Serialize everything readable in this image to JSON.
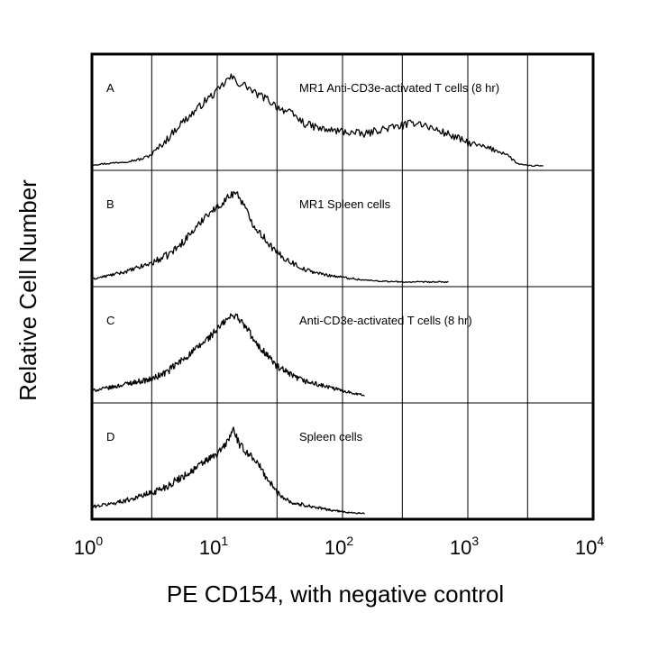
{
  "chart_data": {
    "type": "line",
    "subtype": "stacked-histogram",
    "xscale": "log",
    "xlim": [
      1,
      10000
    ],
    "xlabel": "PE CD154, with negative control",
    "ylabel": "Relative Cell Number",
    "grid": true,
    "x_ticks": [
      {
        "base": "10",
        "exp": "0"
      },
      {
        "base": "10",
        "exp": "1"
      },
      {
        "base": "10",
        "exp": "2"
      },
      {
        "base": "10",
        "exp": "3"
      },
      {
        "base": "10",
        "exp": "4"
      }
    ],
    "x_gridlines": [
      3,
      10,
      30,
      100,
      300,
      1000,
      3000
    ],
    "panels": [
      {
        "letter": "A",
        "title": "MR1 Anti-CD3e-activated T cells (8 hr)",
        "series": [
          [
            1.0,
            0.03
          ],
          [
            1.5,
            0.05
          ],
          [
            2.0,
            0.07
          ],
          [
            2.5,
            0.09
          ],
          [
            3.0,
            0.14
          ],
          [
            4.0,
            0.3
          ],
          [
            5.0,
            0.45
          ],
          [
            6.0,
            0.54
          ],
          [
            7.0,
            0.62
          ],
          [
            8.0,
            0.7
          ],
          [
            10.0,
            0.8
          ],
          [
            12.0,
            0.92
          ],
          [
            13.0,
            0.95
          ],
          [
            15.0,
            0.88
          ],
          [
            17.0,
            0.86
          ],
          [
            20.0,
            0.78
          ],
          [
            25.0,
            0.72
          ],
          [
            30.0,
            0.64
          ],
          [
            40.0,
            0.56
          ],
          [
            50.0,
            0.46
          ],
          [
            70.0,
            0.4
          ],
          [
            100.0,
            0.38
          ],
          [
            150.0,
            0.35
          ],
          [
            200.0,
            0.4
          ],
          [
            300.0,
            0.44
          ],
          [
            400.0,
            0.48
          ],
          [
            500.0,
            0.42
          ],
          [
            700.0,
            0.35
          ],
          [
            1000.0,
            0.26
          ],
          [
            1500.0,
            0.2
          ],
          [
            2000.0,
            0.15
          ],
          [
            2500.0,
            0.04
          ],
          [
            3000.0,
            0.02
          ],
          [
            4000.0,
            0.02
          ]
        ]
      },
      {
        "letter": "B",
        "title": "MR1 Spleen cells",
        "series": [
          [
            1.0,
            0.05
          ],
          [
            1.5,
            0.1
          ],
          [
            2.0,
            0.14
          ],
          [
            3.0,
            0.22
          ],
          [
            4.0,
            0.3
          ],
          [
            5.0,
            0.4
          ],
          [
            6.0,
            0.52
          ],
          [
            7.0,
            0.6
          ],
          [
            8.0,
            0.72
          ],
          [
            10.0,
            0.8
          ],
          [
            12.0,
            0.9
          ],
          [
            14.0,
            0.97
          ],
          [
            16.0,
            0.85
          ],
          [
            18.0,
            0.7
          ],
          [
            20.0,
            0.6
          ],
          [
            25.0,
            0.45
          ],
          [
            30.0,
            0.32
          ],
          [
            40.0,
            0.22
          ],
          [
            50.0,
            0.15
          ],
          [
            70.0,
            0.1
          ],
          [
            100.0,
            0.07
          ],
          [
            150.0,
            0.04
          ],
          [
            200.0,
            0.03
          ],
          [
            300.0,
            0.02
          ],
          [
            500.0,
            0.02
          ],
          [
            700.0,
            0.02
          ]
        ]
      },
      {
        "letter": "C",
        "title": "Anti-CD3e-activated T cells (8 hr)",
        "series": [
          [
            1.0,
            0.1
          ],
          [
            1.5,
            0.14
          ],
          [
            2.0,
            0.18
          ],
          [
            3.0,
            0.22
          ],
          [
            4.0,
            0.3
          ],
          [
            5.0,
            0.4
          ],
          [
            6.0,
            0.48
          ],
          [
            7.0,
            0.55
          ],
          [
            8.0,
            0.62
          ],
          [
            10.0,
            0.74
          ],
          [
            12.0,
            0.85
          ],
          [
            14.0,
            0.9
          ],
          [
            16.0,
            0.8
          ],
          [
            18.0,
            0.72
          ],
          [
            20.0,
            0.6
          ],
          [
            25.0,
            0.48
          ],
          [
            30.0,
            0.35
          ],
          [
            40.0,
            0.25
          ],
          [
            50.0,
            0.2
          ],
          [
            70.0,
            0.15
          ],
          [
            100.0,
            0.1
          ],
          [
            150.0,
            0.05
          ]
        ]
      },
      {
        "letter": "D",
        "title": "Spleen cells",
        "series": [
          [
            1.0,
            0.1
          ],
          [
            1.5,
            0.14
          ],
          [
            2.0,
            0.18
          ],
          [
            3.0,
            0.25
          ],
          [
            4.0,
            0.32
          ],
          [
            5.0,
            0.4
          ],
          [
            6.0,
            0.46
          ],
          [
            7.0,
            0.52
          ],
          [
            8.0,
            0.58
          ],
          [
            10.0,
            0.65
          ],
          [
            12.0,
            0.78
          ],
          [
            13.5,
            0.92
          ],
          [
            15.0,
            0.75
          ],
          [
            17.0,
            0.68
          ],
          [
            20.0,
            0.6
          ],
          [
            25.0,
            0.4
          ],
          [
            30.0,
            0.25
          ],
          [
            40.0,
            0.14
          ],
          [
            50.0,
            0.12
          ],
          [
            70.0,
            0.08
          ],
          [
            100.0,
            0.05
          ],
          [
            150.0,
            0.03
          ]
        ]
      }
    ]
  }
}
